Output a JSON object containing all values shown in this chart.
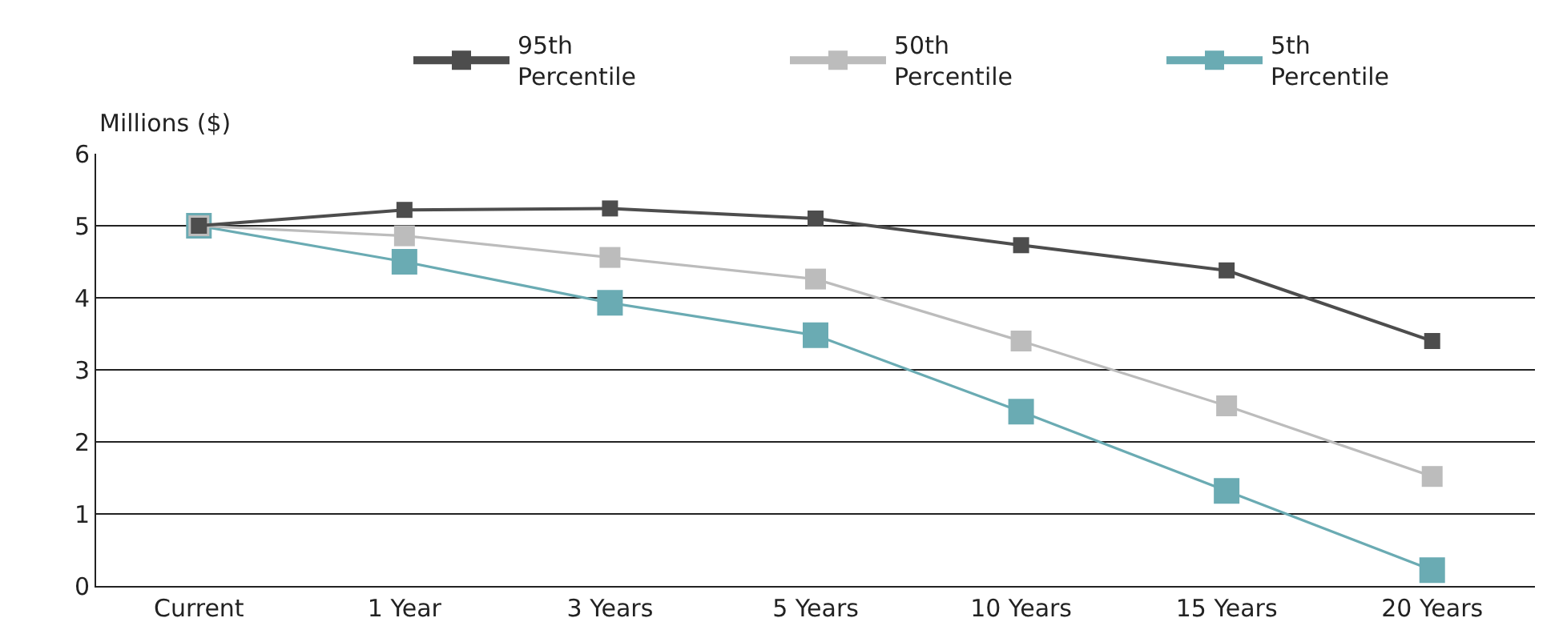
{
  "chart_data": {
    "type": "line",
    "ylabel": "Millions ($)",
    "categories": [
      "Current",
      "1 Year",
      "3 Years",
      "5 Years",
      "10 Years",
      "15 Years",
      "20 Years"
    ],
    "series": [
      {
        "name": "95th Percentile",
        "color": "#4d4d4d",
        "values": [
          5,
          5.22,
          5.24,
          5.1,
          4.73,
          4.38,
          3.4
        ]
      },
      {
        "name": "50th Percentile",
        "color": "#bcbcbc",
        "values": [
          5,
          4.86,
          4.56,
          4.26,
          3.4,
          2.5,
          1.52
        ]
      },
      {
        "name": "5th Percentile",
        "color": "#6aabb3",
        "values": [
          5,
          4.5,
          3.93,
          3.48,
          2.42,
          1.32,
          0.22
        ]
      }
    ],
    "ylim": [
      0,
      6
    ],
    "yticks": [
      0,
      1,
      2,
      3,
      4,
      5,
      6
    ],
    "grid": "y",
    "legend": "top right",
    "marker": "square",
    "line_style": "solid"
  }
}
